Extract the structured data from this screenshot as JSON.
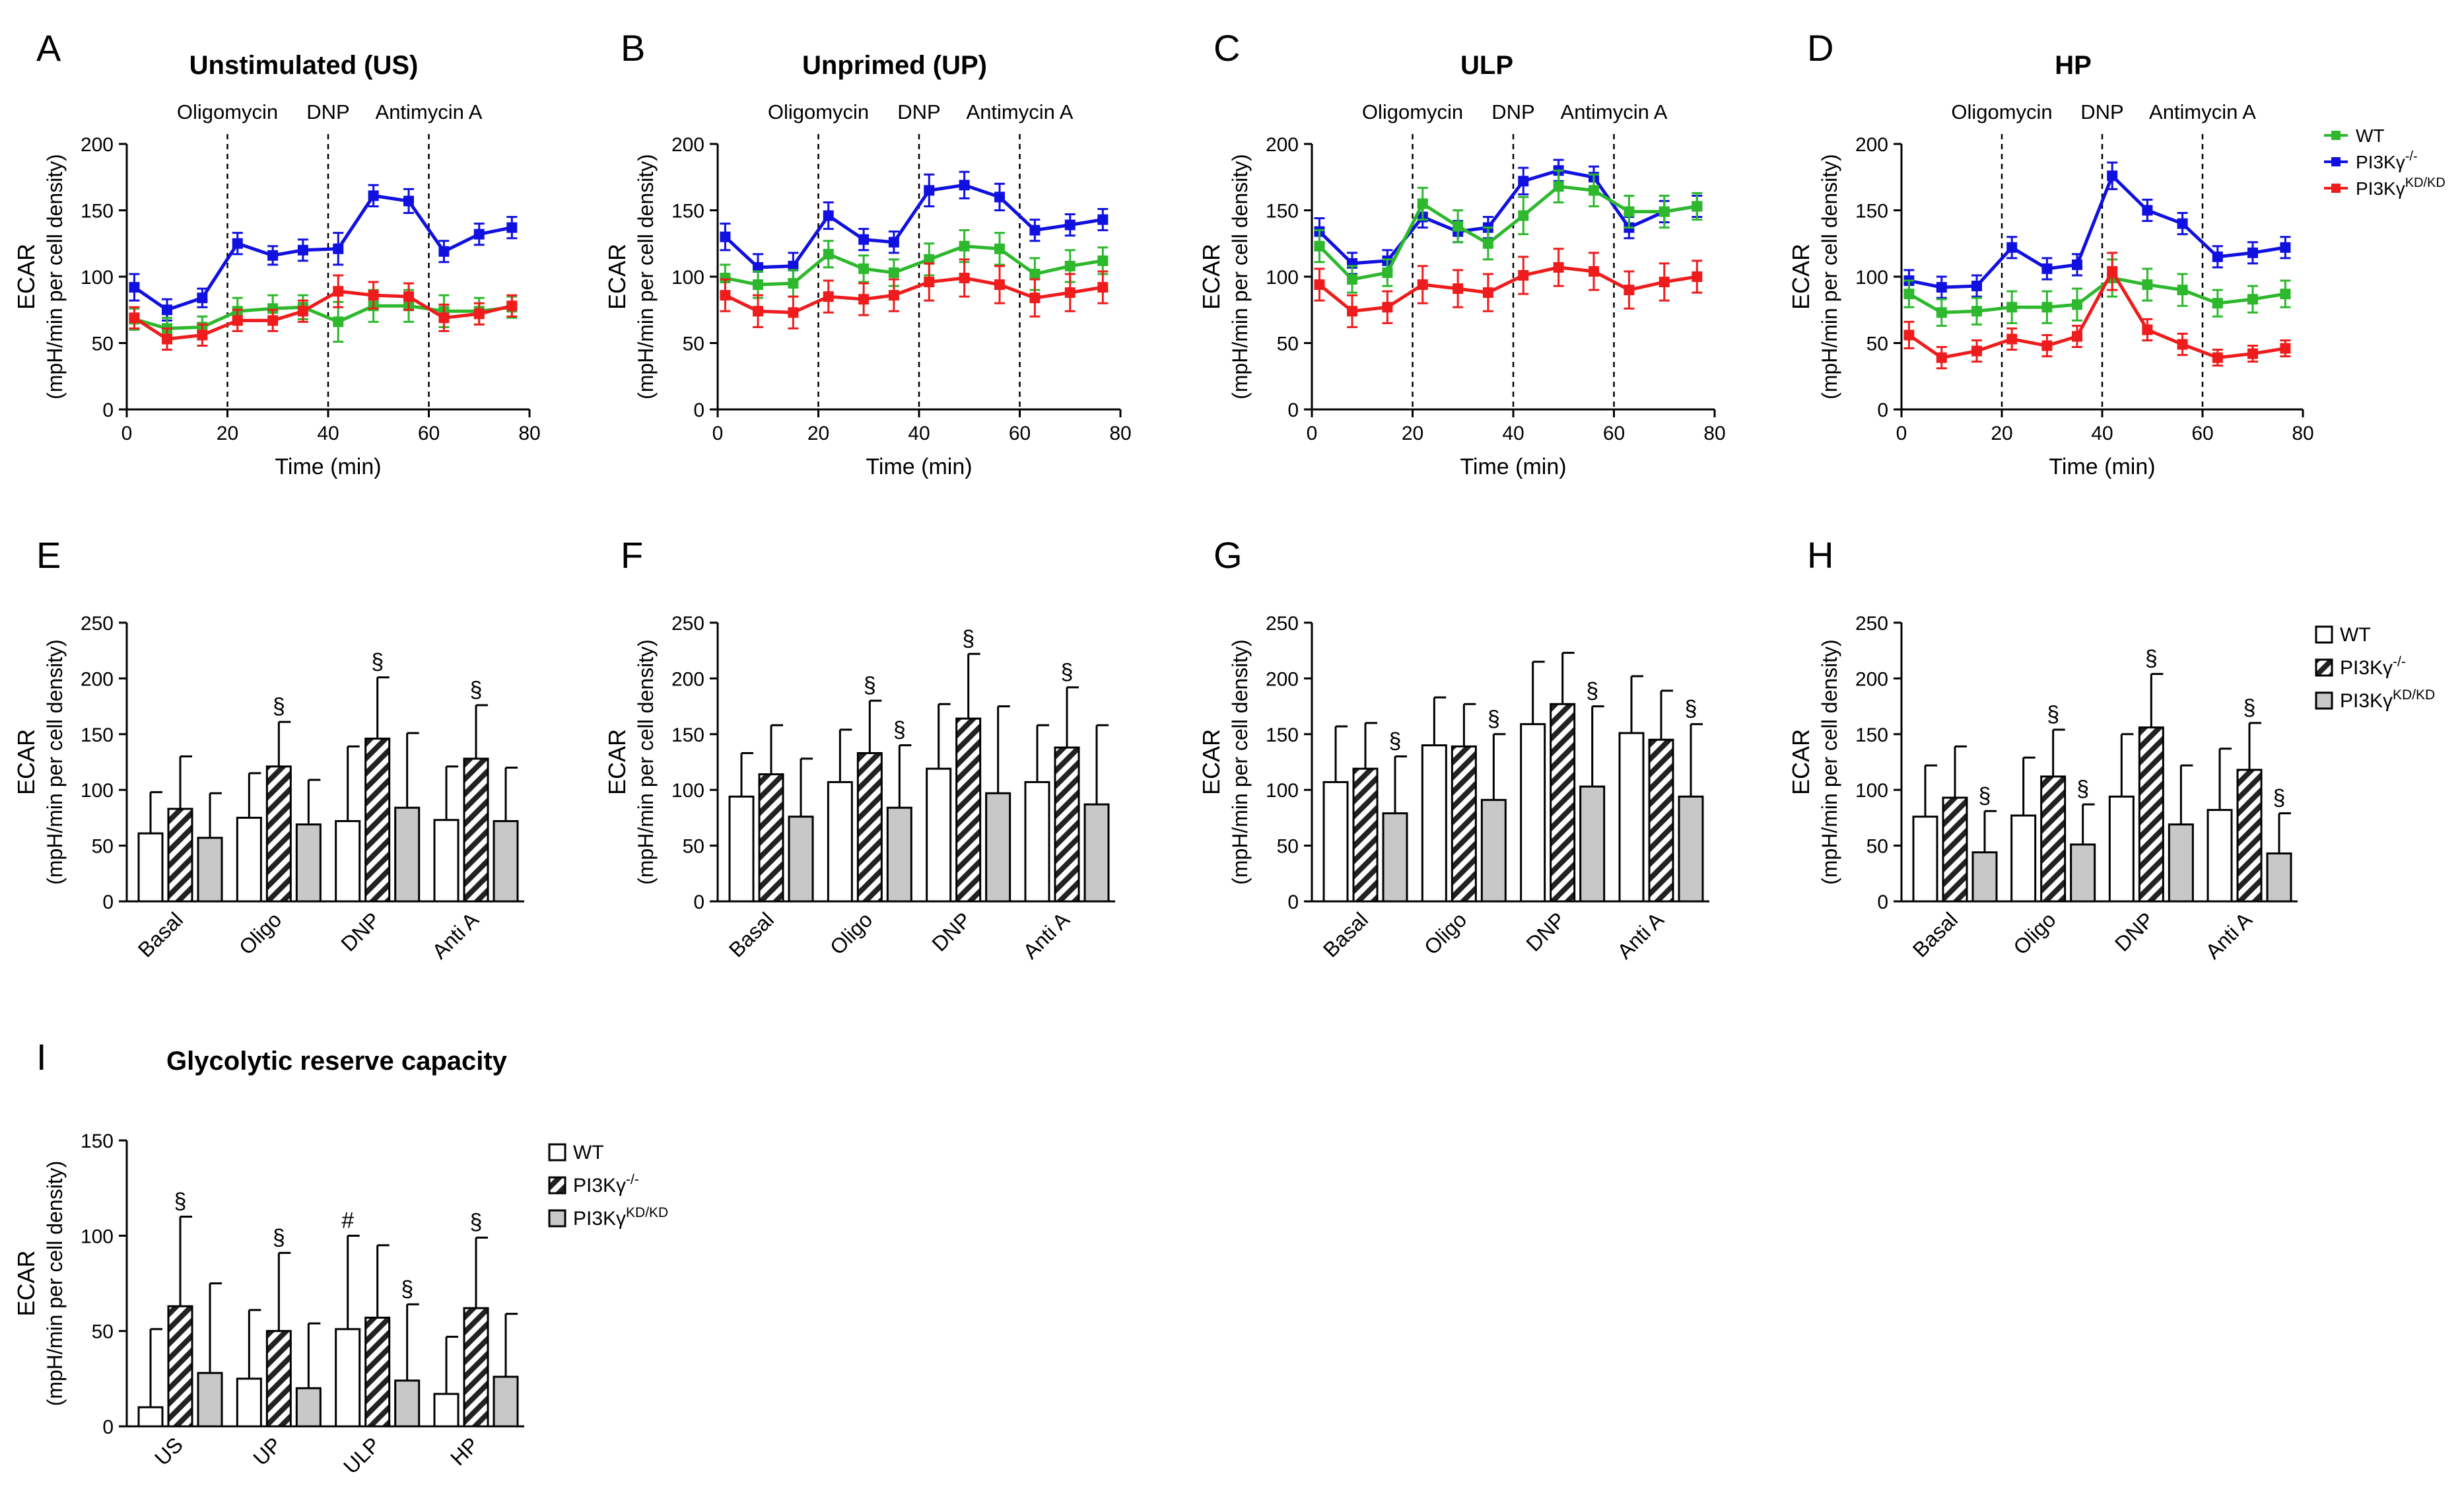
{
  "colors": {
    "wt": "#2db82d",
    "ko": "#1010e0",
    "kd": "#ee1c1c",
    "bar_wt": "#ffffff",
    "bar_kd": "#c8c8c8",
    "axis": "#000000"
  },
  "legends": {
    "line": [
      {
        "key": "wt",
        "label": "WT",
        "sup": ""
      },
      {
        "key": "ko",
        "label": "PI3Kγ",
        "sup": "-/-"
      },
      {
        "key": "kd",
        "label": "PI3Kγ",
        "sup": "KD/KD"
      }
    ],
    "bar": [
      {
        "key": "wt",
        "label": "WT",
        "sup": ""
      },
      {
        "key": "ko",
        "label": "PI3Kγ",
        "sup": "-/-"
      },
      {
        "key": "kd",
        "label": "PI3Kγ",
        "sup": "KD/KD"
      }
    ]
  },
  "chart_data": [
    {
      "panel": "A",
      "type": "line",
      "title": "Unstimulated (US)",
      "xlabel": "Time (min)",
      "ylabel": "ECAR",
      "ylabel2": "(mpH/min per cell density)",
      "xlim": [
        0,
        80
      ],
      "ylim": [
        0,
        200
      ],
      "xticks": [
        0,
        20,
        40,
        60,
        80
      ],
      "yticks": [
        0,
        50,
        100,
        150,
        200
      ],
      "injections": [
        {
          "x": 20,
          "label": "Oligomycin"
        },
        {
          "x": 40,
          "label": "DNP"
        },
        {
          "x": 60,
          "label": "Antimycin A"
        }
      ],
      "x": [
        1.5,
        8,
        15,
        22,
        29,
        35,
        42,
        49,
        56,
        63,
        70,
        76.5
      ],
      "series": [
        {
          "key": "ko",
          "name": "PI3Kγ-/-",
          "values": [
            92,
            75,
            84,
            125,
            116,
            120,
            121,
            161,
            157,
            119,
            132,
            137
          ],
          "err": [
            10,
            8,
            7,
            8,
            7,
            8,
            12,
            8,
            9,
            8,
            8,
            8
          ]
        },
        {
          "key": "wt",
          "name": "WT",
          "values": [
            68,
            61,
            62,
            74,
            76,
            77,
            66,
            78,
            78,
            74,
            74,
            77
          ],
          "err": [
            8,
            8,
            8,
            10,
            10,
            9,
            15,
            12,
            12,
            12,
            10,
            8
          ]
        },
        {
          "key": "kd",
          "name": "PI3Kγ KD/KD",
          "values": [
            69,
            53,
            56,
            67,
            67,
            74,
            89,
            86,
            85,
            69,
            72,
            78
          ],
          "err": [
            8,
            8,
            8,
            8,
            8,
            8,
            12,
            10,
            10,
            10,
            8,
            8
          ]
        }
      ]
    },
    {
      "panel": "B",
      "type": "line",
      "title": "Unprimed (UP)",
      "xlabel": "Time (min)",
      "ylabel": "ECAR",
      "ylabel2": "(mpH/min per cell density)",
      "xlim": [
        0,
        80
      ],
      "ylim": [
        0,
        200
      ],
      "xticks": [
        0,
        20,
        40,
        60,
        80
      ],
      "yticks": [
        0,
        50,
        100,
        150,
        200
      ],
      "injections": [
        {
          "x": 20,
          "label": "Oligomycin"
        },
        {
          "x": 40,
          "label": "DNP"
        },
        {
          "x": 60,
          "label": "Antimycin A"
        }
      ],
      "x": [
        1.5,
        8,
        15,
        22,
        29,
        35,
        42,
        49,
        56,
        63,
        70,
        76.5
      ],
      "series": [
        {
          "key": "ko",
          "name": "PI3Kγ-/-",
          "values": [
            130,
            107,
            108,
            146,
            128,
            126,
            165,
            169,
            160,
            135,
            139,
            143
          ],
          "err": [
            10,
            10,
            10,
            10,
            8,
            8,
            12,
            10,
            10,
            8,
            8,
            8
          ]
        },
        {
          "key": "wt",
          "name": "WT",
          "values": [
            99,
            94,
            95,
            117,
            106,
            103,
            113,
            123,
            121,
            102,
            108,
            112
          ],
          "err": [
            10,
            10,
            10,
            10,
            10,
            10,
            12,
            12,
            12,
            12,
            12,
            10
          ]
        },
        {
          "key": "kd",
          "name": "PI3Kγ KD/KD",
          "values": [
            86,
            74,
            73,
            85,
            83,
            86,
            96,
            99,
            94,
            84,
            88,
            92
          ],
          "err": [
            12,
            12,
            12,
            12,
            12,
            12,
            14,
            14,
            14,
            14,
            14,
            12
          ]
        }
      ]
    },
    {
      "panel": "C",
      "type": "line",
      "title": "ULP",
      "xlabel": "Time (min)",
      "ylabel": "ECAR",
      "ylabel2": "(mpH/min per cell density)",
      "xlim": [
        0,
        80
      ],
      "ylim": [
        0,
        200
      ],
      "xticks": [
        0,
        20,
        40,
        60,
        80
      ],
      "yticks": [
        0,
        50,
        100,
        150,
        200
      ],
      "injections": [
        {
          "x": 20,
          "label": "Oligomycin"
        },
        {
          "x": 40,
          "label": "DNP"
        },
        {
          "x": 60,
          "label": "Antimycin A"
        }
      ],
      "x": [
        1.5,
        8,
        15,
        22,
        29,
        35,
        42,
        49,
        56,
        63,
        70,
        76.5
      ],
      "series": [
        {
          "key": "ko",
          "name": "PI3Kγ-/-",
          "values": [
            134,
            110,
            112,
            145,
            134,
            137,
            172,
            180,
            175,
            137,
            149,
            153
          ],
          "err": [
            10,
            8,
            8,
            8,
            8,
            8,
            10,
            8,
            8,
            8,
            8,
            8
          ]
        },
        {
          "key": "wt",
          "name": "WT",
          "values": [
            123,
            98,
            103,
            155,
            138,
            125,
            146,
            168,
            165,
            149,
            149,
            153
          ],
          "err": [
            12,
            10,
            10,
            12,
            12,
            12,
            14,
            12,
            12,
            12,
            12,
            10
          ]
        },
        {
          "key": "kd",
          "name": "PI3Kγ KD/KD",
          "values": [
            94,
            74,
            77,
            94,
            91,
            88,
            101,
            107,
            104,
            90,
            96,
            100
          ],
          "err": [
            12,
            12,
            12,
            14,
            14,
            14,
            14,
            14,
            14,
            14,
            14,
            12
          ]
        }
      ]
    },
    {
      "panel": "D",
      "type": "line",
      "title": "HP",
      "xlabel": "Time (min)",
      "ylabel": "ECAR",
      "ylabel2": "(mpH/min per cell density)",
      "xlim": [
        0,
        80
      ],
      "ylim": [
        0,
        200
      ],
      "xticks": [
        0,
        20,
        40,
        60,
        80
      ],
      "yticks": [
        0,
        50,
        100,
        150,
        200
      ],
      "injections": [
        {
          "x": 20,
          "label": "Oligomycin"
        },
        {
          "x": 40,
          "label": "DNP"
        },
        {
          "x": 60,
          "label": "Antimycin A"
        }
      ],
      "x": [
        1.5,
        8,
        15,
        22,
        29,
        35,
        42,
        49,
        56,
        63,
        70,
        76.5
      ],
      "series": [
        {
          "key": "ko",
          "name": "PI3Kγ-/-",
          "values": [
            97,
            92,
            93,
            122,
            106,
            109,
            176,
            150,
            140,
            115,
            118,
            122
          ],
          "err": [
            8,
            8,
            8,
            8,
            8,
            8,
            10,
            8,
            8,
            8,
            8,
            8
          ]
        },
        {
          "key": "wt",
          "name": "WT",
          "values": [
            87,
            73,
            74,
            77,
            77,
            79,
            99,
            94,
            90,
            80,
            83,
            87
          ],
          "err": [
            10,
            10,
            10,
            12,
            12,
            12,
            14,
            12,
            12,
            10,
            10,
            10
          ]
        },
        {
          "key": "kd",
          "name": "PI3Kγ KD/KD",
          "values": [
            56,
            39,
            44,
            53,
            48,
            55,
            104,
            60,
            49,
            39,
            42,
            46
          ],
          "err": [
            10,
            8,
            8,
            8,
            8,
            8,
            14,
            8,
            8,
            6,
            6,
            6
          ]
        }
      ]
    },
    {
      "panel": "E",
      "type": "bar",
      "title": "",
      "ylabel": "ECAR",
      "ylabel2": "(mpH/min per cell density)",
      "ylim": [
        0,
        250
      ],
      "yticks": [
        0,
        50,
        100,
        150,
        200,
        250
      ],
      "categories": [
        "Basal",
        "Oligo",
        "DNP",
        "Anti A"
      ],
      "series": [
        {
          "key": "wt",
          "name": "WT",
          "values": [
            61,
            75,
            72,
            73
          ],
          "err": [
            37,
            40,
            67,
            48
          ],
          "marks": [
            "",
            "",
            "",
            ""
          ]
        },
        {
          "key": "ko",
          "name": "PI3Kγ-/-",
          "values": [
            83,
            121,
            146,
            128
          ],
          "err": [
            47,
            40,
            55,
            48
          ],
          "marks": [
            "",
            "§",
            "§",
            "§"
          ]
        },
        {
          "key": "kd",
          "name": "PI3Kγ KD/KD",
          "values": [
            57,
            69,
            84,
            72
          ],
          "err": [
            40,
            40,
            67,
            48
          ],
          "marks": [
            "",
            "",
            "",
            ""
          ]
        }
      ]
    },
    {
      "panel": "F",
      "type": "bar",
      "title": "",
      "ylabel": "ECAR",
      "ylabel2": "(mpH/min per cell density)",
      "ylim": [
        0,
        250
      ],
      "yticks": [
        0,
        50,
        100,
        150,
        200,
        250
      ],
      "categories": [
        "Basal",
        "Oligo",
        "DNP",
        "Anti A"
      ],
      "series": [
        {
          "key": "wt",
          "name": "WT",
          "values": [
            94,
            107,
            119,
            107
          ],
          "err": [
            39,
            47,
            58,
            51
          ],
          "marks": [
            "",
            "",
            "",
            ""
          ]
        },
        {
          "key": "ko",
          "name": "PI3Kγ-/-",
          "values": [
            114,
            133,
            164,
            138
          ],
          "err": [
            44,
            47,
            58,
            54
          ],
          "marks": [
            "",
            "§",
            "§",
            "§"
          ]
        },
        {
          "key": "kd",
          "name": "PI3Kγ KD/KD",
          "values": [
            76,
            84,
            97,
            87
          ],
          "err": [
            52,
            56,
            78,
            71
          ],
          "marks": [
            "",
            "§",
            "",
            ""
          ]
        }
      ]
    },
    {
      "panel": "G",
      "type": "bar",
      "title": "",
      "ylabel": "ECAR",
      "ylabel2": "(mpH/min per cell density)",
      "ylim": [
        0,
        250
      ],
      "yticks": [
        0,
        50,
        100,
        150,
        200,
        250
      ],
      "categories": [
        "Basal",
        "Oligo",
        "DNP",
        "Anti A"
      ],
      "series": [
        {
          "key": "wt",
          "name": "WT",
          "values": [
            107,
            140,
            159,
            151
          ],
          "err": [
            50,
            43,
            56,
            51
          ],
          "marks": [
            "",
            "",
            "",
            ""
          ]
        },
        {
          "key": "ko",
          "name": "PI3Kγ-/-",
          "values": [
            119,
            139,
            177,
            145
          ],
          "err": [
            41,
            38,
            46,
            44
          ],
          "marks": [
            "",
            "",
            "",
            ""
          ]
        },
        {
          "key": "kd",
          "name": "PI3Kγ KD/KD",
          "values": [
            79,
            91,
            103,
            94
          ],
          "err": [
            51,
            59,
            72,
            65
          ],
          "marks": [
            "§",
            "§",
            "§",
            "§"
          ]
        }
      ]
    },
    {
      "panel": "H",
      "type": "bar",
      "title": "",
      "ylabel": "ECAR",
      "ylabel2": "(mpH/min per cell density)",
      "ylim": [
        0,
        250
      ],
      "yticks": [
        0,
        50,
        100,
        150,
        200,
        250
      ],
      "categories": [
        "Basal",
        "Oligo",
        "DNP",
        "Anti A"
      ],
      "series": [
        {
          "key": "wt",
          "name": "WT",
          "values": [
            76,
            77,
            94,
            82
          ],
          "err": [
            46,
            52,
            56,
            55
          ],
          "marks": [
            "",
            "",
            "",
            ""
          ]
        },
        {
          "key": "ko",
          "name": "PI3Kγ-/-",
          "values": [
            93,
            112,
            156,
            118
          ],
          "err": [
            46,
            42,
            48,
            42
          ],
          "marks": [
            "",
            "§",
            "§",
            "§"
          ]
        },
        {
          "key": "kd",
          "name": "PI3Kγ KD/KD",
          "values": [
            44,
            51,
            69,
            43
          ],
          "err": [
            37,
            36,
            53,
            36
          ],
          "marks": [
            "§",
            "§",
            "",
            "§"
          ]
        }
      ]
    },
    {
      "panel": "I",
      "type": "bar",
      "title": "Glycolytic reserve capacity",
      "ylabel": "ECAR",
      "ylabel2": "(mpH/min per cell density)",
      "ylim": [
        0,
        150
      ],
      "yticks": [
        0,
        50,
        100,
        150
      ],
      "categories": [
        "US",
        "UP",
        "ULP",
        "HP"
      ],
      "series": [
        {
          "key": "wt",
          "name": "WT",
          "values": [
            10,
            25,
            51,
            17
          ],
          "err": [
            41,
            36,
            49,
            30
          ],
          "marks": [
            "",
            "",
            "#",
            ""
          ]
        },
        {
          "key": "ko",
          "name": "PI3Kγ-/-",
          "values": [
            63,
            50,
            57,
            62
          ],
          "err": [
            47,
            41,
            38,
            37
          ],
          "marks": [
            "§",
            "§",
            "",
            "§"
          ]
        },
        {
          "key": "kd",
          "name": "PI3Kγ KD/KD",
          "values": [
            28,
            20,
            24,
            26
          ],
          "err": [
            47,
            34,
            40,
            33
          ],
          "marks": [
            "",
            "",
            "§",
            ""
          ]
        }
      ]
    }
  ]
}
